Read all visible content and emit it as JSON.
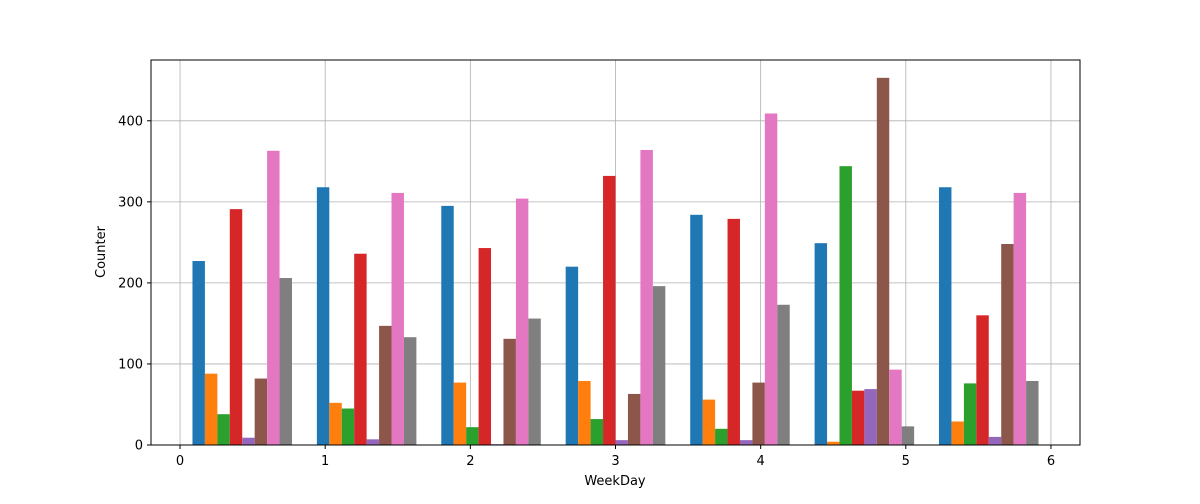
{
  "chart_data": {
    "type": "bar",
    "title": "",
    "xlabel": "WeekDay",
    "ylabel": "Counter",
    "xlim": [
      -0.2,
      6.2
    ],
    "ylim": [
      0,
      475
    ],
    "grid": true,
    "legend": "none",
    "x_ticks": [
      "0",
      "1",
      "2",
      "3",
      "4",
      "5",
      "6"
    ],
    "y_ticks": [
      "0",
      "100",
      "200",
      "300",
      "400"
    ],
    "bins": [
      {
        "start": 0.0,
        "end": 0.857
      },
      {
        "start": 0.857,
        "end": 1.714
      },
      {
        "start": 1.714,
        "end": 2.571
      },
      {
        "start": 2.571,
        "end": 3.429
      },
      {
        "start": 3.429,
        "end": 4.286
      },
      {
        "start": 4.286,
        "end": 5.143
      },
      {
        "start": 5.143,
        "end": 6.0
      }
    ],
    "series": [
      {
        "color": "#1f77b4",
        "values": [
          227,
          318,
          295,
          220,
          284,
          249,
          318
        ]
      },
      {
        "color": "#ff7f0e",
        "values": [
          88,
          52,
          77,
          79,
          56,
          4,
          29
        ]
      },
      {
        "color": "#2ca02c",
        "values": [
          38,
          45,
          22,
          32,
          20,
          344,
          76
        ]
      },
      {
        "color": "#d62728",
        "values": [
          291,
          236,
          243,
          332,
          279,
          67,
          160
        ]
      },
      {
        "color": "#9467bd",
        "values": [
          9,
          7,
          1,
          6,
          6,
          69,
          10
        ]
      },
      {
        "color": "#8c564b",
        "values": [
          82,
          147,
          131,
          63,
          77,
          453,
          248
        ]
      },
      {
        "color": "#e377c2",
        "values": [
          363,
          311,
          304,
          364,
          409,
          93,
          311
        ]
      },
      {
        "color": "#7f7f7f",
        "values": [
          206,
          133,
          156,
          196,
          173,
          23,
          79
        ]
      }
    ]
  }
}
